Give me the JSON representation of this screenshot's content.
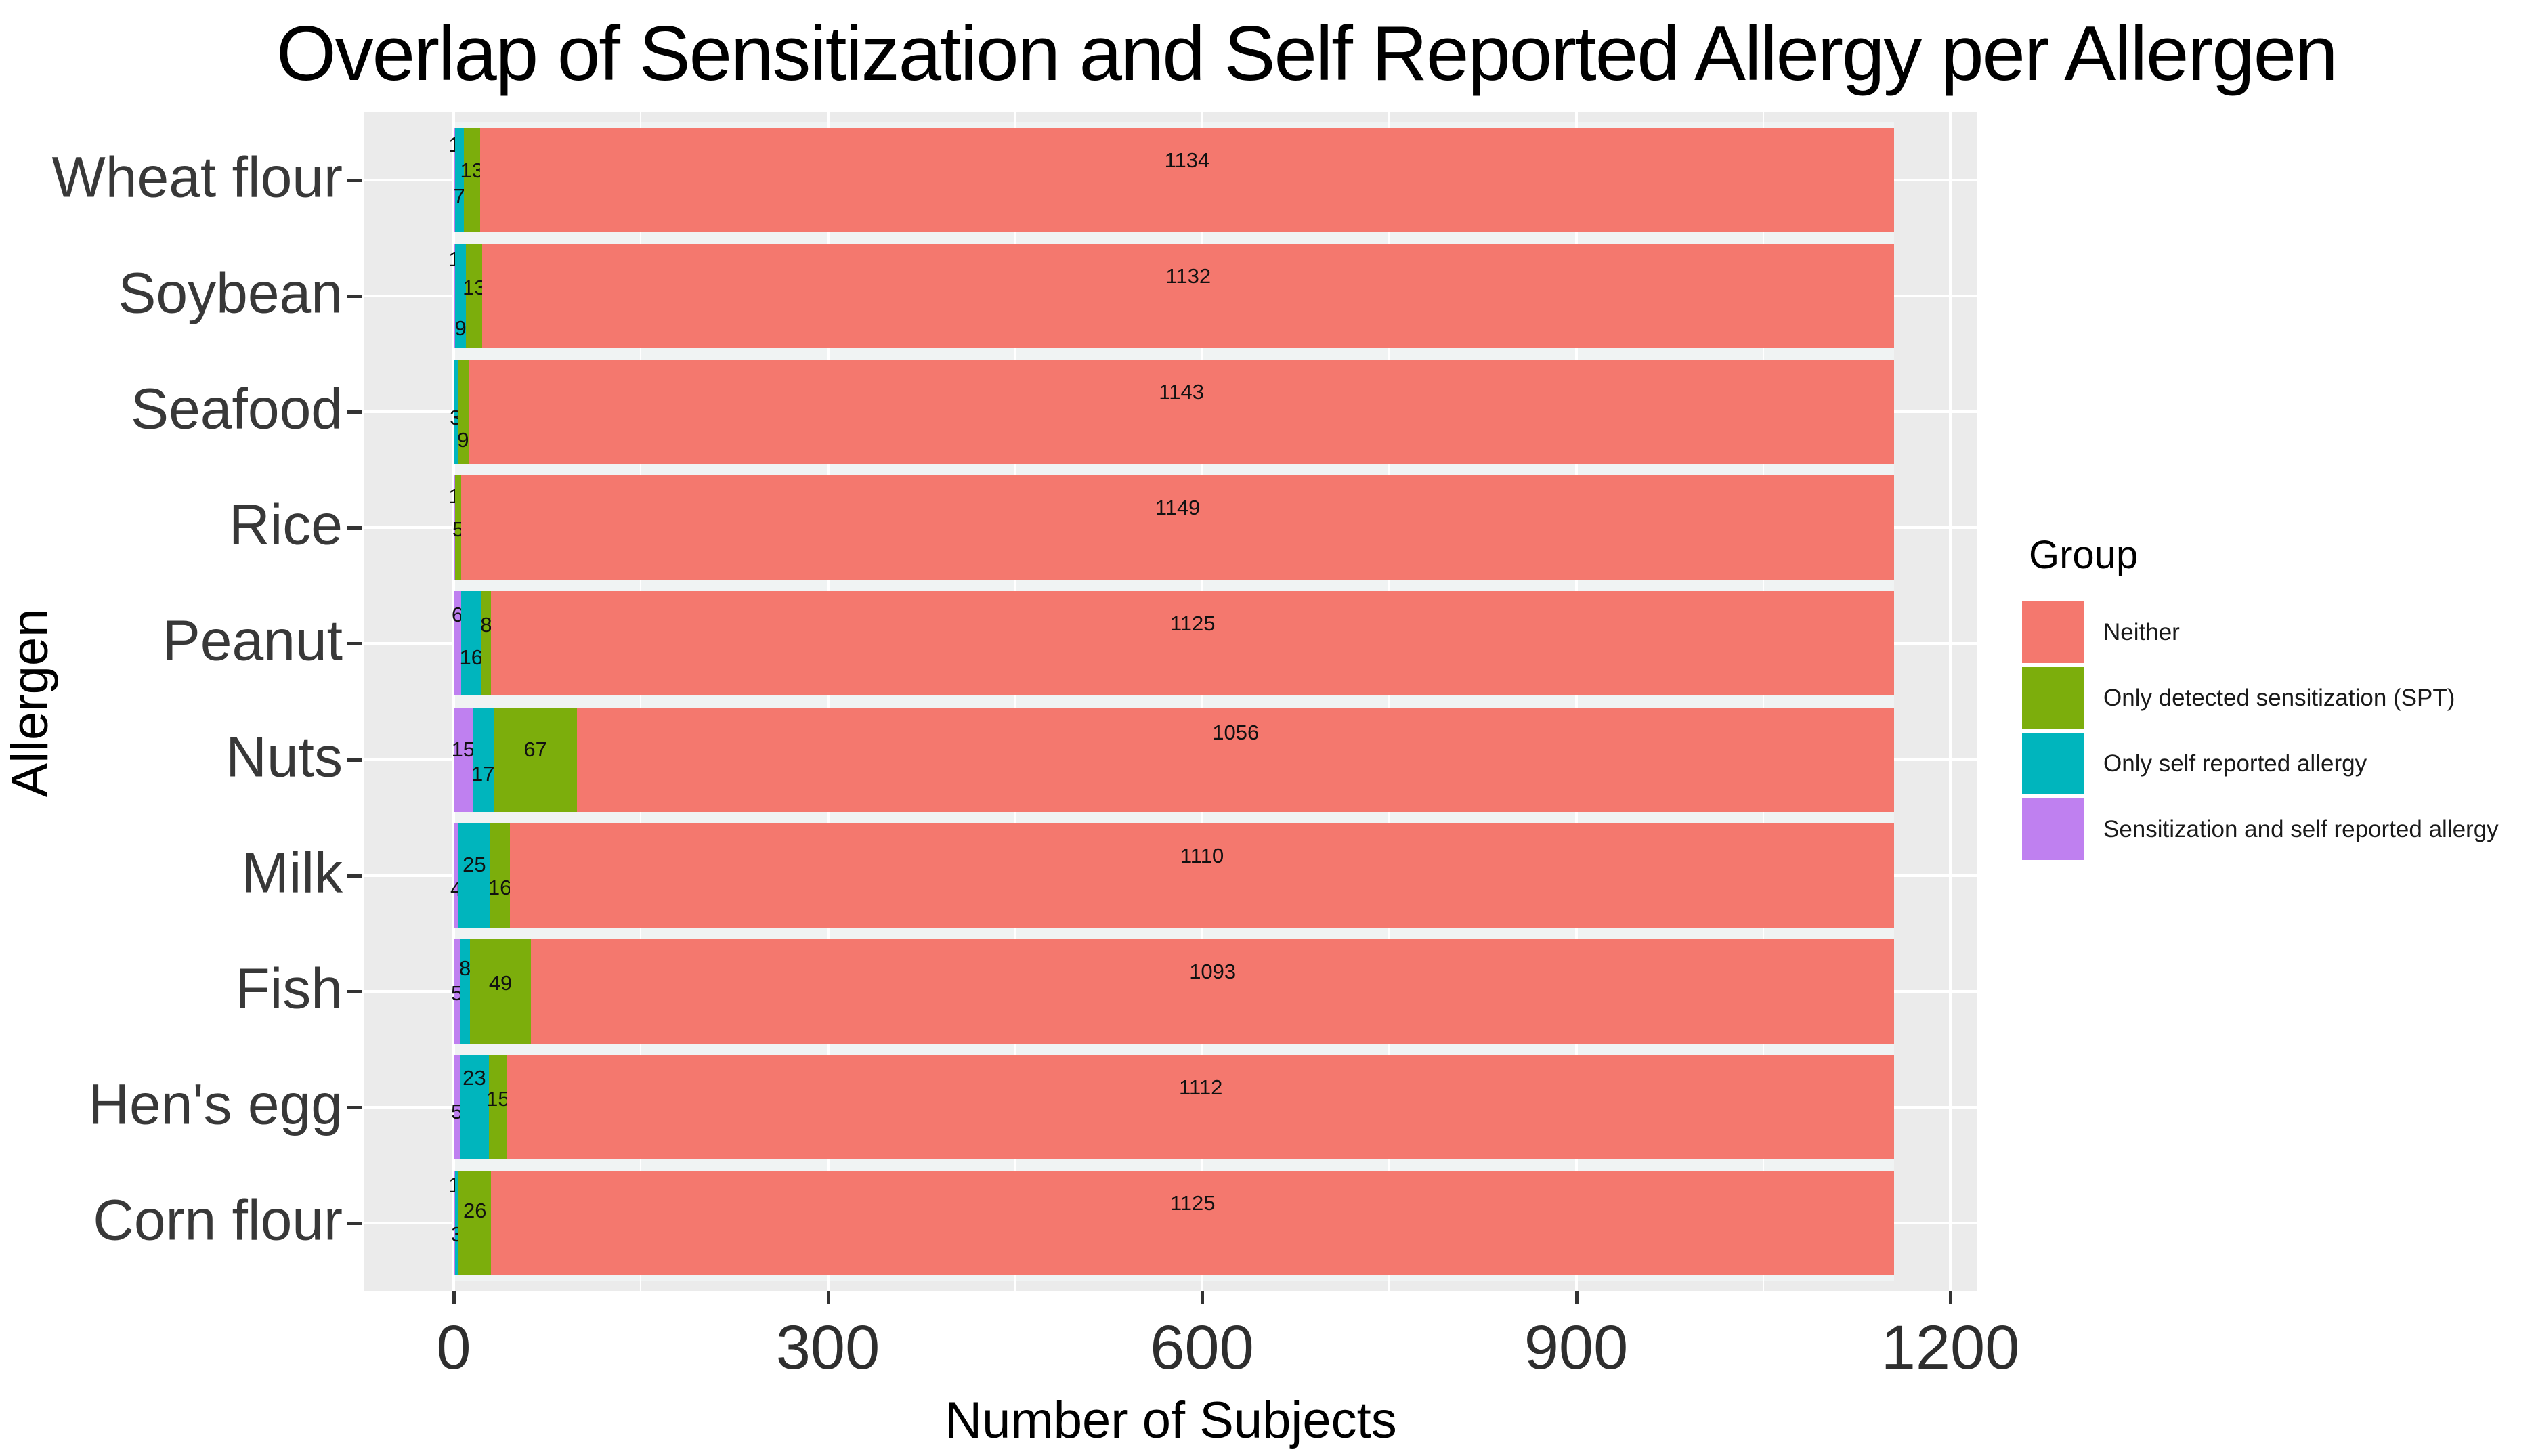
{
  "chart_data": {
    "type": "bar",
    "orientation": "horizontal",
    "stacked": true,
    "title": "Overlap of Sensitization and Self Reported Allergy per Allergen",
    "xlabel": "Number of Subjects",
    "ylabel": "Allergen",
    "x_ticks": [
      0,
      300,
      600,
      900,
      1200
    ],
    "x_minor_ticks": [
      150,
      450,
      750,
      1050
    ],
    "xlim": [
      0,
      1200
    ],
    "total_per_category": 1155,
    "grid": "on",
    "legend_position": "right",
    "legend": {
      "title": "Group",
      "entries": [
        {
          "key": "neither",
          "label": "Neither"
        },
        {
          "key": "only_spt",
          "label": "Only detected sensitization (SPT)"
        },
        {
          "key": "only_self",
          "label": "Only self reported allergy"
        },
        {
          "key": "both",
          "label": "Sensitization and self reported allergy"
        }
      ]
    },
    "colors": {
      "neither": "#F4786E",
      "only_spt": "#7CAE0C",
      "only_self": "#00B5BD",
      "both": "#BF80F0",
      "panel_bg": "#EBEBEB",
      "gridline": "#FFFFFF",
      "bar_backdrop": "#F0F3F3"
    },
    "stack_order": [
      "both",
      "only_self",
      "only_spt",
      "neither"
    ],
    "categories": [
      {
        "label": "Wheat flour",
        "values": {
          "both": 1,
          "only_self": 7,
          "only_spt": 13,
          "neither": 1134
        },
        "label_dy": {
          "both": -52,
          "only_self": 24,
          "only_spt": -14,
          "neither": -29
        }
      },
      {
        "label": "Soybean",
        "values": {
          "both": 1,
          "only_self": 9,
          "only_spt": 13,
          "neither": 1132
        },
        "label_dy": {
          "both": -54,
          "only_self": 48,
          "only_spt": -12,
          "neither": -29
        }
      },
      {
        "label": "Seafood",
        "values": {
          "both": 0,
          "only_self": 3,
          "only_spt": 9,
          "neither": 1143
        },
        "label_dy": {
          "only_self": 9,
          "only_spt": 42,
          "neither": -29
        }
      },
      {
        "label": "Rice",
        "values": {
          "both": 1,
          "only_self": 0,
          "only_spt": 5,
          "neither": 1149
        },
        "label_dy": {
          "both": -46,
          "only_spt": 3,
          "neither": -29
        }
      },
      {
        "label": "Peanut",
        "values": {
          "both": 6,
          "only_self": 16,
          "only_spt": 8,
          "neither": 1125
        },
        "label_dy": {
          "both": -42,
          "only_self": 21,
          "only_spt": -27,
          "neither": -29
        }
      },
      {
        "label": "Nuts",
        "values": {
          "both": 15,
          "only_self": 17,
          "only_spt": 67,
          "neither": 1056
        },
        "label_dy": {
          "both": -15,
          "only_self": 21,
          "only_spt": -15,
          "neither": -40
        }
      },
      {
        "label": "Milk",
        "values": {
          "both": 4,
          "only_self": 25,
          "only_spt": 16,
          "neither": 1110
        },
        "label_dy": {
          "both": 20,
          "only_self": -16,
          "only_spt": 18,
          "neither": -29
        }
      },
      {
        "label": "Fish",
        "values": {
          "both": 5,
          "only_self": 8,
          "only_spt": 49,
          "neither": 1093
        },
        "label_dy": {
          "both": 3,
          "only_self": -34,
          "only_spt": -12,
          "neither": -29
        }
      },
      {
        "label": "Hen's egg",
        "values": {
          "both": 5,
          "only_self": 23,
          "only_spt": 15,
          "neither": 1112
        },
        "label_dy": {
          "both": 7,
          "only_self": -43,
          "only_spt": -12,
          "neither": -29
        }
      },
      {
        "label": "Corn flour",
        "values": {
          "both": 1,
          "only_self": 3,
          "only_spt": 26,
          "neither": 1125
        },
        "label_dy": {
          "both": -56,
          "only_self": 17,
          "only_spt": -18,
          "neither": -29
        }
      }
    ]
  }
}
